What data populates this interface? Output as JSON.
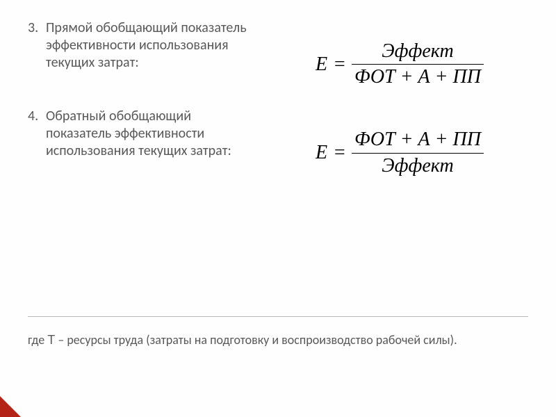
{
  "items": [
    {
      "number": "3.",
      "text": "Прямой обобщающий показатель эффективности использования текущих затрат:",
      "formula": {
        "lhs": "E",
        "equals": "=",
        "numerator": "Эффект",
        "denominator": "ФОТ + А + ПП"
      }
    },
    {
      "number": "4.",
      "text": "Обратный обобщающий показатель эффективности использования текущих затрат:",
      "formula": {
        "lhs": "E",
        "equals": "=",
        "numerator": "ФОТ + А + ПП",
        "denominator": "Эффект"
      }
    }
  ],
  "footnote_prefix": "где ",
  "footnote_var": "Т",
  "footnote_rest": " – ресурсы труда (затраты на подготовку и воспроизводство рабочей силы).",
  "styles": {
    "text_color": "#595959",
    "formula_color": "#000000",
    "divider_color": "#b9b9b9",
    "accent_color": "#b32317",
    "background_color": "#fefefe",
    "body_fontsize_pt": 15,
    "formula_fontsize_pt": 21,
    "footnote_fontsize_pt": 13.5,
    "formula_font": "Times New Roman italic",
    "body_font": "Calibri/Arial"
  }
}
